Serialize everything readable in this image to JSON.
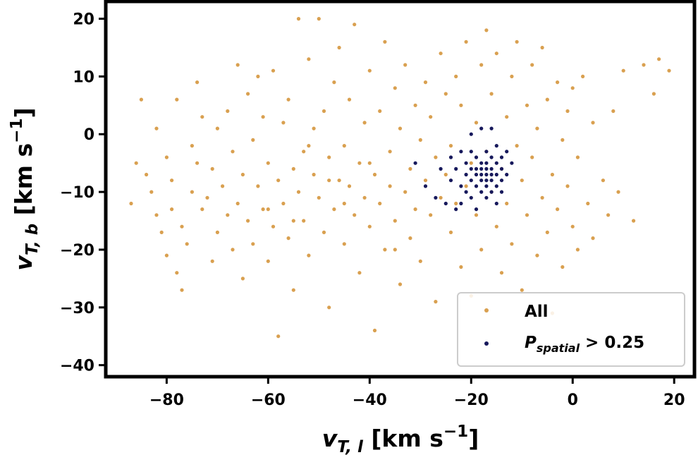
{
  "chart_data": {
    "type": "scatter",
    "title": "",
    "xlabel": {
      "main": "v",
      "sub": "T, l",
      "unit_before": " [km s",
      "unit_exp": "−1",
      "unit_after": "]"
    },
    "ylabel": {
      "main": "v",
      "sub": "T, b",
      "unit_before": " [km s",
      "unit_exp": "−1",
      "unit_after": "]"
    },
    "xlim": [
      -92,
      24
    ],
    "ylim": [
      -42,
      23
    ],
    "xticks": [
      -80,
      -60,
      -40,
      -20,
      0,
      20
    ],
    "yticks": [
      20,
      10,
      0,
      -10,
      -20,
      -30,
      -40
    ],
    "xtick_labels": [
      "−80",
      "−60",
      "−40",
      "−20",
      "0",
      "20"
    ],
    "ytick_labels": [
      "20",
      "10",
      "0",
      "−10",
      "−20",
      "−30",
      "−40"
    ],
    "grid": false,
    "legend_placement": "lower-right",
    "series": [
      {
        "name": "All",
        "color": "#d9a050",
        "points": [
          [
            -87,
            -12
          ],
          [
            -86,
            -5
          ],
          [
            -85,
            6
          ],
          [
            -84,
            -7
          ],
          [
            -83,
            -10
          ],
          [
            -82,
            -14
          ],
          [
            -82,
            1
          ],
          [
            -81,
            -17
          ],
          [
            -80,
            -4
          ],
          [
            -80,
            -21
          ],
          [
            -79,
            -8
          ],
          [
            -79,
            -13
          ],
          [
            -78,
            6
          ],
          [
            -78,
            -24
          ],
          [
            -77,
            -27
          ],
          [
            -77,
            -16
          ],
          [
            -76,
            -19
          ],
          [
            -75,
            -2
          ],
          [
            -75,
            -10
          ],
          [
            -74,
            9
          ],
          [
            -74,
            -5
          ],
          [
            -73,
            -13
          ],
          [
            -73,
            3
          ],
          [
            -72,
            -11
          ],
          [
            -71,
            -22
          ],
          [
            -71,
            -6
          ],
          [
            -70,
            1
          ],
          [
            -70,
            -17
          ],
          [
            -69,
            -9
          ],
          [
            -68,
            4
          ],
          [
            -68,
            -14
          ],
          [
            -67,
            -20
          ],
          [
            -67,
            -3
          ],
          [
            -66,
            12
          ],
          [
            -66,
            -12
          ],
          [
            -65,
            -7
          ],
          [
            -65,
            -25
          ],
          [
            -64,
            7
          ],
          [
            -64,
            -15
          ],
          [
            -63,
            -1
          ],
          [
            -63,
            -19
          ],
          [
            -62,
            10
          ],
          [
            -62,
            -9
          ],
          [
            -61,
            -13
          ],
          [
            -61,
            3
          ],
          [
            -60,
            -5
          ],
          [
            -60,
            -22
          ],
          [
            -59,
            11
          ],
          [
            -59,
            -16
          ],
          [
            -58,
            -8
          ],
          [
            -58,
            -35
          ],
          [
            -57,
            2
          ],
          [
            -57,
            -12
          ],
          [
            -56,
            -18
          ],
          [
            -56,
            6
          ],
          [
            -55,
            -6
          ],
          [
            -55,
            -27
          ],
          [
            -54,
            20
          ],
          [
            -54,
            -10
          ],
          [
            -53,
            -3
          ],
          [
            -53,
            -15
          ],
          [
            -52,
            13
          ],
          [
            -52,
            -21
          ],
          [
            -51,
            -7
          ],
          [
            -51,
            1
          ],
          [
            -50,
            20
          ],
          [
            -50,
            -11
          ],
          [
            -49,
            -17
          ],
          [
            -49,
            4
          ],
          [
            -48,
            -4
          ],
          [
            -48,
            -30
          ],
          [
            -47,
            9
          ],
          [
            -47,
            -13
          ],
          [
            -46,
            -8
          ],
          [
            -46,
            15
          ],
          [
            -45,
            -2
          ],
          [
            -45,
            -19
          ],
          [
            -44,
            -9
          ],
          [
            -44,
            6
          ],
          [
            -43,
            -14
          ],
          [
            -43,
            19
          ],
          [
            -42,
            -5
          ],
          [
            -42,
            -24
          ],
          [
            -41,
            2
          ],
          [
            -41,
            -11
          ],
          [
            -40,
            -16
          ],
          [
            -40,
            11
          ],
          [
            -39,
            -7
          ],
          [
            -39,
            -34
          ],
          [
            -38,
            4
          ],
          [
            -38,
            -12
          ],
          [
            -37,
            -20
          ],
          [
            -37,
            16
          ],
          [
            -36,
            -3
          ],
          [
            -36,
            -9
          ],
          [
            -35,
            8
          ],
          [
            -35,
            -15
          ],
          [
            -34,
            -26
          ],
          [
            -34,
            1
          ],
          [
            -33,
            -10
          ],
          [
            -33,
            12
          ],
          [
            -32,
            -6
          ],
          [
            -32,
            -18
          ],
          [
            -31,
            5
          ],
          [
            -31,
            -13
          ],
          [
            -30,
            -1
          ],
          [
            -30,
            -22
          ],
          [
            -29,
            9
          ],
          [
            -29,
            -8
          ],
          [
            -28,
            -14
          ],
          [
            -28,
            3
          ],
          [
            -27,
            -4
          ],
          [
            -27,
            -29
          ],
          [
            -26,
            14
          ],
          [
            -26,
            -11
          ],
          [
            -25,
            -7
          ],
          [
            -25,
            7
          ],
          [
            -24,
            -17
          ],
          [
            -24,
            -2
          ],
          [
            -23,
            10
          ],
          [
            -23,
            -12
          ],
          [
            -22,
            -23
          ],
          [
            -22,
            5
          ],
          [
            -21,
            -9
          ],
          [
            -21,
            16
          ],
          [
            -20,
            -5
          ],
          [
            -20,
            -28
          ],
          [
            -19,
            2
          ],
          [
            -19,
            -14
          ],
          [
            -18,
            12
          ],
          [
            -18,
            -20
          ],
          [
            -17,
            -3
          ],
          [
            -17,
            18
          ],
          [
            -16,
            -10
          ],
          [
            -16,
            7
          ],
          [
            -15,
            -16
          ],
          [
            -15,
            14
          ],
          [
            -14,
            -6
          ],
          [
            -14,
            -24
          ],
          [
            -13,
            3
          ],
          [
            -13,
            -12
          ],
          [
            -12,
            10
          ],
          [
            -12,
            -19
          ],
          [
            -11,
            -2
          ],
          [
            -11,
            16
          ],
          [
            -10,
            -8
          ],
          [
            -10,
            -27
          ],
          [
            -9,
            5
          ],
          [
            -9,
            -14
          ],
          [
            -8,
            -4
          ],
          [
            -8,
            12
          ],
          [
            -7,
            -21
          ],
          [
            -7,
            1
          ],
          [
            -6,
            -11
          ],
          [
            -6,
            15
          ],
          [
            -5,
            -17
          ],
          [
            -5,
            6
          ],
          [
            -4,
            -7
          ],
          [
            -4,
            -31
          ],
          [
            -3,
            9
          ],
          [
            -3,
            -13
          ],
          [
            -2,
            -1
          ],
          [
            -2,
            -23
          ],
          [
            -1,
            4
          ],
          [
            -1,
            -9
          ],
          [
            0,
            8
          ],
          [
            0,
            -16
          ],
          [
            1,
            -4
          ],
          [
            1,
            -20
          ],
          [
            2,
            10
          ],
          [
            3,
            -12
          ],
          [
            4,
            2
          ],
          [
            4,
            -18
          ],
          [
            6,
            -8
          ],
          [
            7,
            -14
          ],
          [
            8,
            4
          ],
          [
            9,
            -10
          ],
          [
            10,
            11
          ],
          [
            12,
            -15
          ],
          [
            14,
            12
          ],
          [
            16,
            7
          ],
          [
            17,
            13
          ],
          [
            19,
            11
          ],
          [
            -60,
            -13
          ],
          [
            -55,
            -15
          ],
          [
            -45,
            -12
          ],
          [
            -40,
            -5
          ],
          [
            -35,
            -20
          ],
          [
            -48,
            -8
          ],
          [
            -52,
            -2
          ]
        ]
      },
      {
        "name": "P_spatial > 0.25",
        "color": "#17195c",
        "points": [
          [
            -31,
            -5
          ],
          [
            -29,
            -9
          ],
          [
            -27,
            -11
          ],
          [
            -26,
            -6
          ],
          [
            -25,
            -12
          ],
          [
            -24,
            -8
          ],
          [
            -24,
            -4
          ],
          [
            -23,
            -13
          ],
          [
            -23,
            -6
          ],
          [
            -22,
            -3
          ],
          [
            -22,
            -9
          ],
          [
            -22,
            -12
          ],
          [
            -21,
            -5
          ],
          [
            -21,
            -7
          ],
          [
            -21,
            -10
          ],
          [
            -20,
            -3
          ],
          [
            -20,
            -6
          ],
          [
            -20,
            -8
          ],
          [
            -20,
            -11
          ],
          [
            -20,
            0
          ],
          [
            -19,
            -4
          ],
          [
            -19,
            -6
          ],
          [
            -19,
            -7
          ],
          [
            -19,
            -9
          ],
          [
            -19,
            -13
          ],
          [
            -18,
            -5
          ],
          [
            -18,
            -6
          ],
          [
            -18,
            -7
          ],
          [
            -18,
            -8
          ],
          [
            -18,
            -10
          ],
          [
            -18,
            1
          ],
          [
            -17,
            -3
          ],
          [
            -17,
            -5
          ],
          [
            -17,
            -6
          ],
          [
            -17,
            -7
          ],
          [
            -17,
            -8
          ],
          [
            -17,
            -9
          ],
          [
            -17,
            -11
          ],
          [
            -16,
            -4
          ],
          [
            -16,
            -6
          ],
          [
            -16,
            -7
          ],
          [
            -16,
            -8
          ],
          [
            -16,
            -10
          ],
          [
            -16,
            1
          ],
          [
            -15,
            -2
          ],
          [
            -15,
            -5
          ],
          [
            -15,
            -7
          ],
          [
            -15,
            -9
          ],
          [
            -15,
            -12
          ],
          [
            -14,
            -4
          ],
          [
            -14,
            -6
          ],
          [
            -14,
            -8
          ],
          [
            -14,
            -10
          ],
          [
            -13,
            -3
          ],
          [
            -13,
            -7
          ],
          [
            -12,
            -5
          ]
        ]
      }
    ],
    "legend": [
      {
        "label": "All",
        "series": 0
      },
      {
        "label_main": "P",
        "label_sub": "spatial",
        "label_rest": " > 0.25",
        "series": 1
      }
    ]
  }
}
